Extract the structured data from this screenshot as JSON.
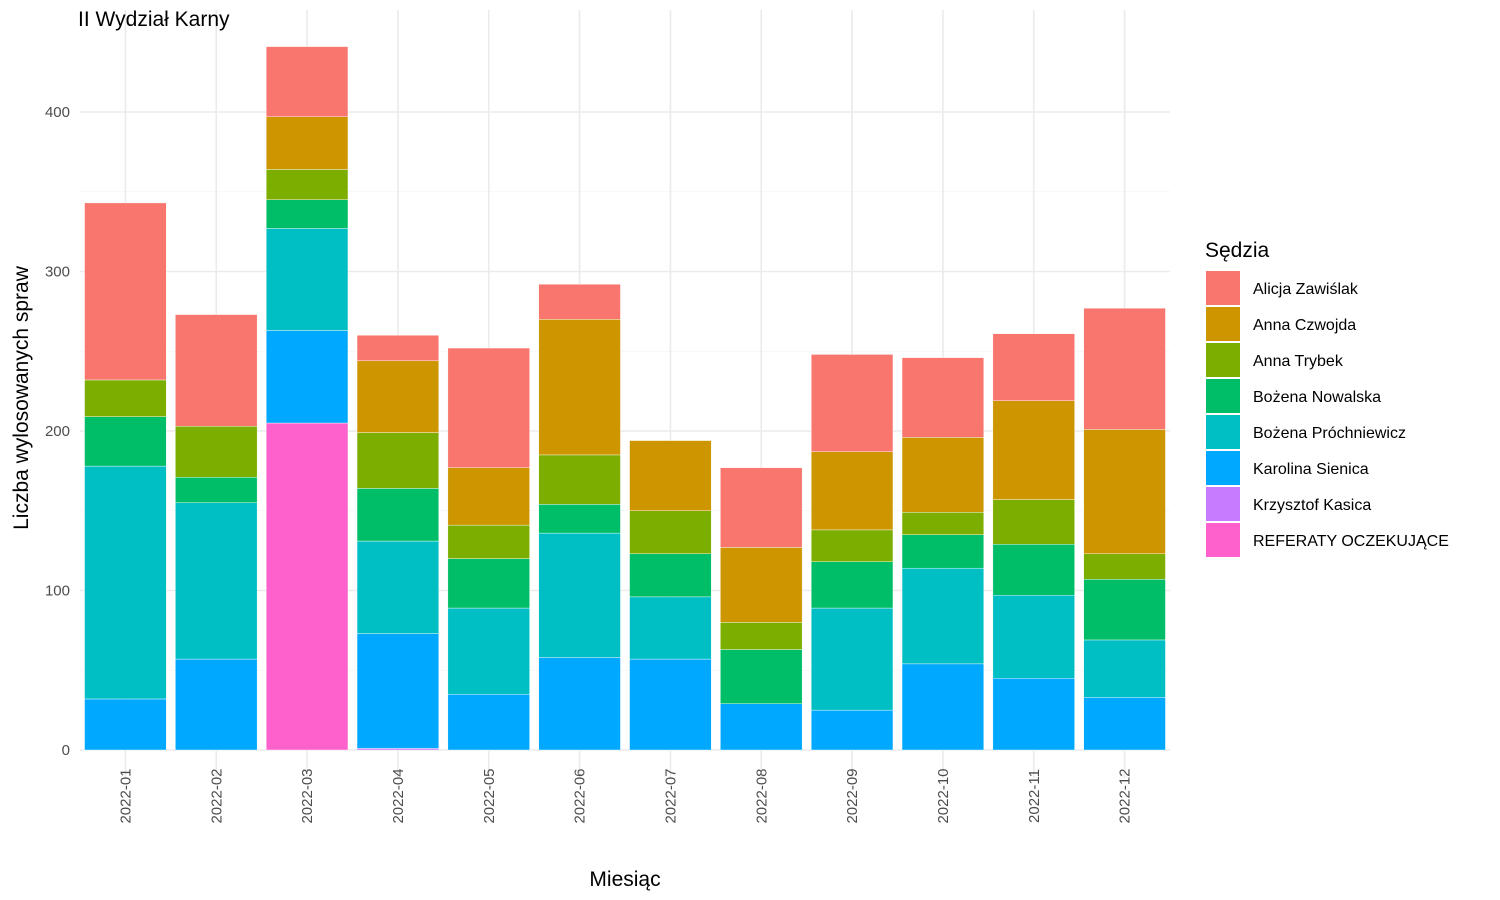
{
  "chart_data": {
    "type": "bar",
    "stacked": true,
    "title": "II Wydział Karny",
    "xlabel": "Miesiąc",
    "ylabel": "Liczba wylosowanych spraw",
    "legend_title": "Sędzia",
    "legend_position": "right",
    "grid": true,
    "ylim": [
      0,
      445
    ],
    "yticks": [
      0,
      100,
      200,
      300,
      400
    ],
    "categories": [
      "2022-01",
      "2022-02",
      "2022-03",
      "2022-04",
      "2022-05",
      "2022-06",
      "2022-07",
      "2022-08",
      "2022-09",
      "2022-10",
      "2022-11",
      "2022-12"
    ],
    "series": [
      {
        "name": "REFERATY OCZEKUJĄCE",
        "color": "#FF61CC",
        "values": [
          0,
          0,
          205,
          0,
          0,
          0,
          0,
          0,
          0,
          0,
          0,
          0
        ]
      },
      {
        "name": "Krzysztof Kasica",
        "color": "#C77CFF",
        "values": [
          0,
          0,
          0,
          1,
          0,
          0,
          0,
          0,
          0,
          0,
          0,
          0
        ]
      },
      {
        "name": "Karolina Sienica",
        "color": "#00A9FF",
        "values": [
          32,
          57,
          58,
          72,
          35,
          58,
          57,
          29,
          25,
          54,
          45,
          33
        ]
      },
      {
        "name": "Bożena Próchniewicz",
        "color": "#00BFC4",
        "values": [
          146,
          98,
          64,
          58,
          54,
          78,
          39,
          0,
          64,
          60,
          52,
          36
        ]
      },
      {
        "name": "Bożena Nowalska",
        "color": "#00BE67",
        "values": [
          31,
          16,
          18,
          33,
          31,
          18,
          27,
          34,
          29,
          21,
          32,
          38
        ]
      },
      {
        "name": "Anna Trybek",
        "color": "#7CAE00",
        "values": [
          23,
          32,
          19,
          35,
          21,
          31,
          27,
          17,
          20,
          14,
          28,
          16
        ]
      },
      {
        "name": "Anna Czwojda",
        "color": "#CD9600",
        "values": [
          0,
          0,
          33,
          45,
          36,
          85,
          44,
          47,
          49,
          47,
          62,
          78
        ]
      },
      {
        "name": "Alicja Zawiślak",
        "color": "#F8766D",
        "values": [
          111,
          70,
          44,
          16,
          75,
          22,
          0,
          50,
          61,
          50,
          42,
          76
        ]
      }
    ],
    "legend_order": [
      "Alicja Zawiślak",
      "Anna Czwojda",
      "Anna Trybek",
      "Bożena Nowalska",
      "Bożena Próchniewicz",
      "Karolina Sienica",
      "Krzysztof Kasica",
      "REFERATY OCZEKUJĄCE"
    ]
  }
}
